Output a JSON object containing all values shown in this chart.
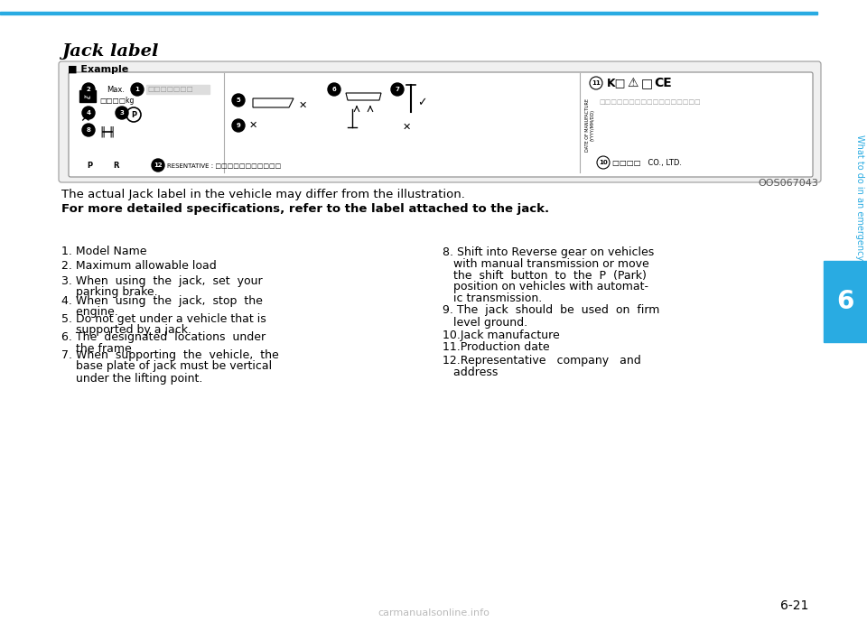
{
  "bg_color": "#ffffff",
  "top_line_color": "#29abe2",
  "side_tab_color": "#29abe2",
  "title": "Jack label",
  "example_label": "■ Example",
  "image_label": "OOS067043",
  "note1": "The actual Jack label in the vehicle may differ from the illustration.",
  "note2": "For more detailed specifications, refer to the label attached to the jack.",
  "left_items": [
    [
      "1. Model Name"
    ],
    [
      "2. Maximum allowable load"
    ],
    [
      "3. When  using  the  jack,  set  your",
      "    parking brake."
    ],
    [
      "4. When  using  the  jack,  stop  the",
      "    engine."
    ],
    [
      "5. Do not get under a vehicle that is",
      "    supported by a jack."
    ],
    [
      "6. The  designated  locations  under",
      "    the frame"
    ],
    [
      "7. When  supporting  the  vehicle,  the",
      "    base plate of jack must be vertical",
      "    under the lifting point."
    ]
  ],
  "right_items": [
    [
      "8. Shift into Reverse gear on vehicles",
      "   with manual transmission or move",
      "   the  shift  button  to  the  P  (Park)",
      "   position on vehicles with automat-",
      "   ic transmission."
    ],
    [
      "9. The  jack  should  be  used  on  firm",
      "   level ground."
    ],
    [
      "10.Jack manufacture"
    ],
    [
      "11.Production date"
    ],
    [
      "12.Representative   company   and",
      "   address"
    ]
  ],
  "side_text": "What to do in an emergency",
  "tab_number": "6",
  "page_number": "6-21",
  "watermark": "carmanualsonline.info"
}
